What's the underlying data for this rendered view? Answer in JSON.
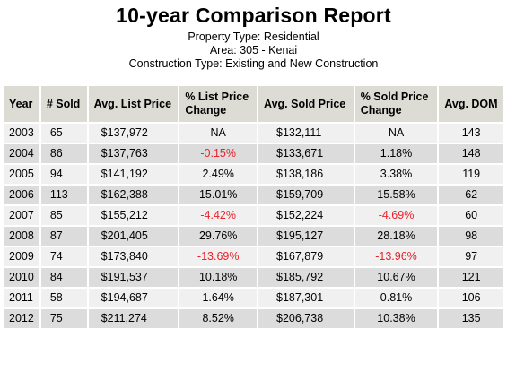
{
  "report": {
    "title": "10-year Comparison Report",
    "property_type": "Property Type: Residential",
    "area": "Area: 305 - Kenai",
    "construction_type": "Construction Type: Existing and New Construction"
  },
  "table": {
    "headers": {
      "year": "Year",
      "num_sold": "# Sold",
      "avg_list_price": "Avg. List Price",
      "pct_list_change": "% List Price Change",
      "avg_sold_price": "Avg. Sold Price",
      "pct_sold_change": "% Sold Price Change",
      "avg_dom": "Avg. DOM"
    },
    "rows": [
      {
        "year": "2003",
        "sold": "65",
        "list": "$137,972",
        "list_change": "NA",
        "sold_price": "$132,111",
        "sold_change": "NA",
        "dom": "143"
      },
      {
        "year": "2004",
        "sold": "86",
        "list": "$137,763",
        "list_change": "-0.15%",
        "sold_price": "$133,671",
        "sold_change": "1.18%",
        "dom": "148"
      },
      {
        "year": "2005",
        "sold": "94",
        "list": "$141,192",
        "list_change": "2.49%",
        "sold_price": "$138,186",
        "sold_change": "3.38%",
        "dom": "119"
      },
      {
        "year": "2006",
        "sold": "113",
        "list": "$162,388",
        "list_change": "15.01%",
        "sold_price": "$159,709",
        "sold_change": "15.58%",
        "dom": "62"
      },
      {
        "year": "2007",
        "sold": "85",
        "list": "$155,212",
        "list_change": "-4.42%",
        "sold_price": "$152,224",
        "sold_change": "-4.69%",
        "dom": "60"
      },
      {
        "year": "2008",
        "sold": "87",
        "list": "$201,405",
        "list_change": "29.76%",
        "sold_price": "$195,127",
        "sold_change": "28.18%",
        "dom": "98"
      },
      {
        "year": "2009",
        "sold": "74",
        "list": "$173,840",
        "list_change": "-13.69%",
        "sold_price": "$167,879",
        "sold_change": "-13.96%",
        "dom": "97"
      },
      {
        "year": "2010",
        "sold": "84",
        "list": "$191,537",
        "list_change": "10.18%",
        "sold_price": "$185,792",
        "sold_change": "10.67%",
        "dom": "121"
      },
      {
        "year": "2011",
        "sold": "58",
        "list": "$194,687",
        "list_change": "1.64%",
        "sold_price": "$187,301",
        "sold_change": "0.81%",
        "dom": "106"
      },
      {
        "year": "2012",
        "sold": "75",
        "list": "$211,274",
        "list_change": "8.52%",
        "sold_price": "$206,738",
        "sold_change": "10.38%",
        "dom": "135"
      }
    ]
  },
  "colors": {
    "negative": "#e8222a",
    "header_bg": "#dcdcd4",
    "row_light": "#f0f0f0",
    "row_dark": "#dcdcdc"
  }
}
